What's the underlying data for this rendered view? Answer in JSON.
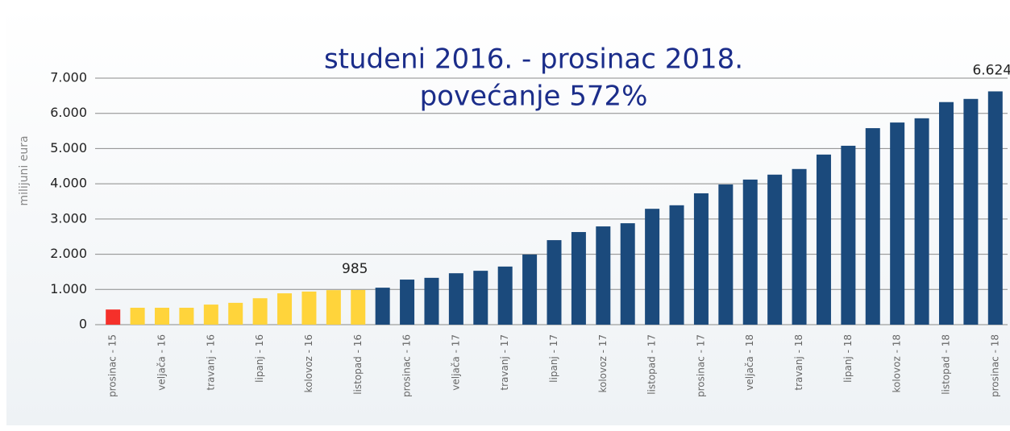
{
  "chart_data": {
    "type": "bar",
    "title": "studeni 2016. - prosinac 2018.",
    "subtitle": "povećanje 572%",
    "y_label": "milijuni eura",
    "categories": [
      "prosinac - 15",
      null,
      "veljača - 16",
      null,
      "travanj - 16",
      null,
      "lipanj - 16",
      null,
      "kolovoz - 16",
      null,
      "listopad - 16",
      null,
      "prosinac - 16",
      null,
      "veljača - 17",
      null,
      "travanj - 17",
      null,
      "lipanj - 17",
      null,
      "kolovoz - 17",
      null,
      "listopad - 17",
      null,
      "prosinac - 17",
      null,
      "veljača - 18",
      null,
      "travanj - 18",
      null,
      "lipanj - 18",
      null,
      "kolovoz - 18",
      null,
      "listopad - 18",
      null,
      "prosinac - 18"
    ],
    "values": [
      430,
      480,
      480,
      480,
      570,
      620,
      750,
      890,
      940,
      980,
      985,
      1050,
      1280,
      1330,
      1460,
      1530,
      1650,
      1990,
      2400,
      2630,
      2790,
      2880,
      3290,
      3390,
      3730,
      3980,
      4120,
      4260,
      4420,
      4830,
      5080,
      5580,
      5740,
      5860,
      6320,
      6410,
      6624
    ],
    "value_labels": [
      null,
      null,
      null,
      null,
      null,
      null,
      null,
      null,
      null,
      null,
      "985",
      null,
      null,
      null,
      null,
      null,
      null,
      null,
      null,
      null,
      null,
      null,
      null,
      null,
      null,
      null,
      null,
      null,
      null,
      null,
      null,
      null,
      null,
      null,
      null,
      null,
      "6.624"
    ],
    "colors": [
      "#f5302a",
      "#ffd43b",
      "#ffd43b",
      "#ffd43b",
      "#ffd43b",
      "#ffd43b",
      "#ffd43b",
      "#ffd43b",
      "#ffd43b",
      "#ffd43b",
      "#ffd43b",
      "#1b4a7c",
      "#1b4a7c",
      "#1b4a7c",
      "#1b4a7c",
      "#1b4a7c",
      "#1b4a7c",
      "#1b4a7c",
      "#1b4a7c",
      "#1b4a7c",
      "#1b4a7c",
      "#1b4a7c",
      "#1b4a7c",
      "#1b4a7c",
      "#1b4a7c",
      "#1b4a7c",
      "#1b4a7c",
      "#1b4a7c",
      "#1b4a7c",
      "#1b4a7c",
      "#1b4a7c",
      "#1b4a7c",
      "#1b4a7c",
      "#1b4a7c",
      "#1b4a7c",
      "#1b4a7c",
      "#1b4a7c"
    ],
    "ylim": [
      0,
      7000
    ],
    "yticks": [
      0,
      {
        "value": 1000,
        "label": "1.000"
      },
      {
        "value": 2000,
        "label": "2.000"
      },
      {
        "value": 3000,
        "label": "3.000"
      },
      {
        "value": 4000,
        "label": "4.000"
      },
      {
        "value": 5000,
        "label": "5.000"
      },
      {
        "value": 6000,
        "label": "6.000"
      },
      {
        "value": 7000,
        "label": "7.000"
      }
    ],
    "grid": true
  }
}
